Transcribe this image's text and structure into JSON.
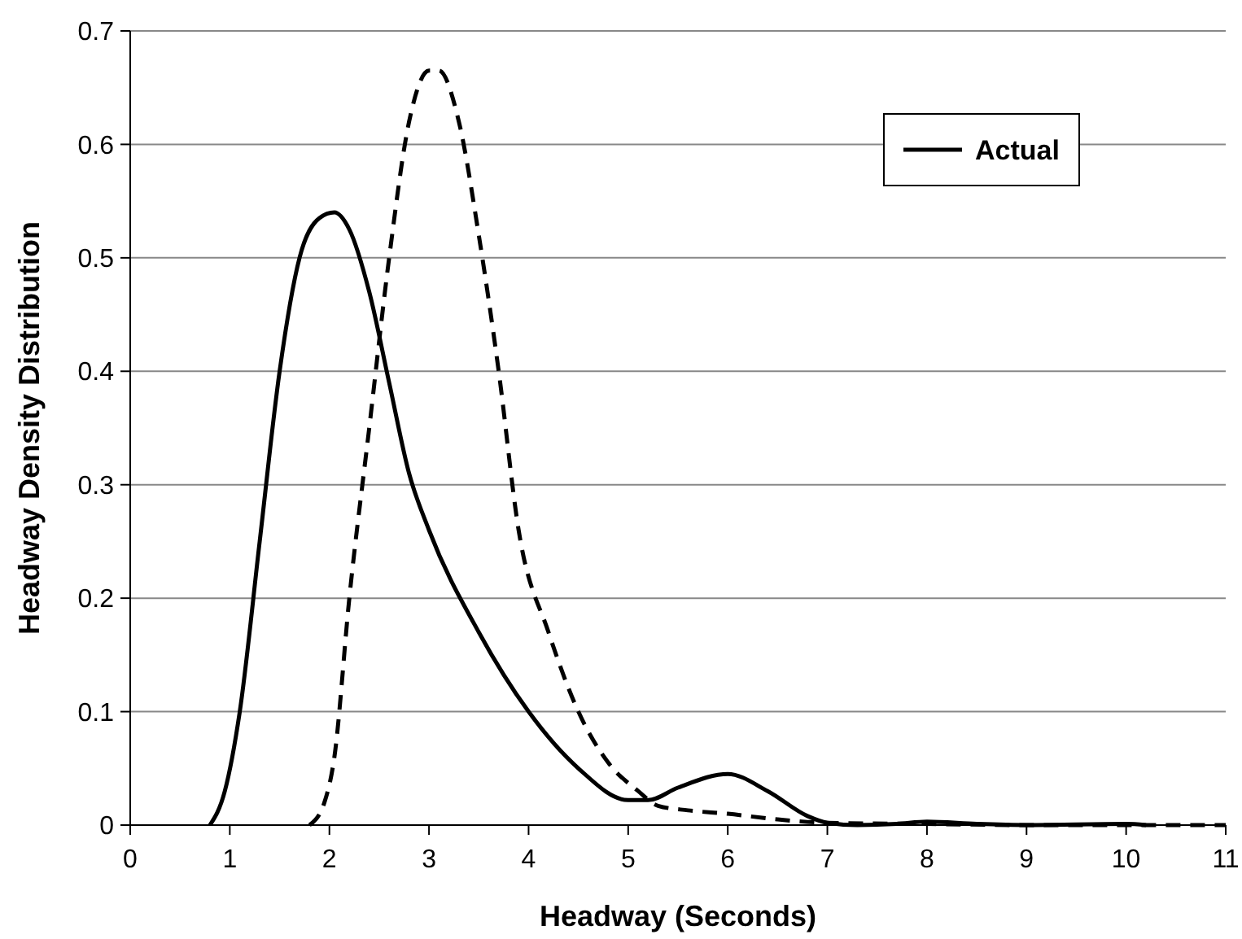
{
  "chart_data": {
    "type": "line",
    "xlabel": "Headway (Seconds)",
    "ylabel": "Headway Density Distribution",
    "xlim": [
      0,
      11
    ],
    "xticks": [
      0,
      1,
      2,
      3,
      4,
      5,
      6,
      7,
      8,
      9,
      10,
      11
    ],
    "ylim": [
      0,
      0.7
    ],
    "yticks": [
      0,
      0.1,
      0.2,
      0.3,
      0.4,
      0.5,
      0.6,
      0.7
    ],
    "grid": "y",
    "legend": "top right",
    "series": [
      {
        "color": "#000000",
        "line_style": "dashed",
        "x": [
          1.8,
          1.95,
          2.05,
          2.2,
          2.4,
          2.6,
          2.8,
          3,
          3.1,
          3.3,
          3.5,
          3.7,
          3.9,
          4.2,
          4.5,
          4.8,
          5.1,
          5.3,
          5.6,
          6,
          6.5,
          7,
          8,
          9,
          11
        ],
        "values": [
          0,
          0.02,
          0.06,
          0.2,
          0.35,
          0.5,
          0.62,
          0.665,
          0.665,
          0.62,
          0.52,
          0.4,
          0.26,
          0.17,
          0.1,
          0.055,
          0.03,
          0.017,
          0.013,
          0.01,
          0.005,
          0.002,
          0.001,
          0,
          0
        ]
      },
      {
        "name": "Actual",
        "color": "#000000",
        "line_style": "solid",
        "x": [
          0.8,
          0.95,
          1.1,
          1.3,
          1.5,
          1.7,
          1.9,
          2.05,
          2.2,
          2.4,
          2.6,
          2.8,
          3,
          3.5,
          4,
          4.5,
          5,
          5.2,
          5.5,
          6,
          6.4,
          6.8,
          7,
          7.3,
          7.7,
          8,
          8.5,
          9,
          10,
          10.2
        ],
        "values": [
          0,
          0.03,
          0.1,
          0.25,
          0.4,
          0.5,
          0.535,
          0.54,
          0.525,
          0.47,
          0.39,
          0.31,
          0.26,
          0.17,
          0.1,
          0.05,
          0.022,
          0.022,
          0.033,
          0.045,
          0.03,
          0.008,
          0.002,
          0,
          0.001,
          0.003,
          0.001,
          0,
          0.001,
          0
        ]
      }
    ]
  }
}
